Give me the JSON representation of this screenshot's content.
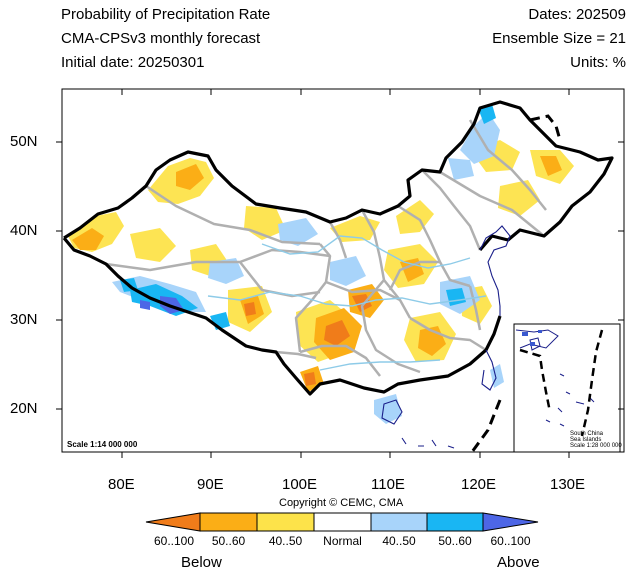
{
  "header": {
    "title": "Probability of Precipitation Rate",
    "model": "CMA-CPSv3 monthly forecast",
    "initial_date": "Initial date: 20250301",
    "dates": "Dates: 202509",
    "ensemble": "Ensemble Size = 21",
    "units": "Units: %"
  },
  "map": {
    "lat_labels": [
      "50N",
      "40N",
      "30N",
      "20N"
    ],
    "lon_labels": [
      "80E",
      "90E",
      "100E",
      "110E",
      "120E",
      "130E"
    ],
    "scale": "Scale 1:14 000 000",
    "inset": {
      "line1": "South China",
      "line2": "Sea Islands",
      "line3": "Scale 1:28 000 000"
    }
  },
  "copyright": "Copyright © CEMC, CMA",
  "colorbar": {
    "colors": [
      "#f07c1a",
      "#fbae16",
      "#fde34a",
      "#ffffff",
      "#a8d4fa",
      "#19b6f3",
      "#4d66e6"
    ],
    "labels": [
      "60..100",
      "50..60",
      "40..50",
      "Normal",
      "40..50",
      "50..60",
      "60..100"
    ],
    "below": "Below",
    "above": "Above"
  }
}
